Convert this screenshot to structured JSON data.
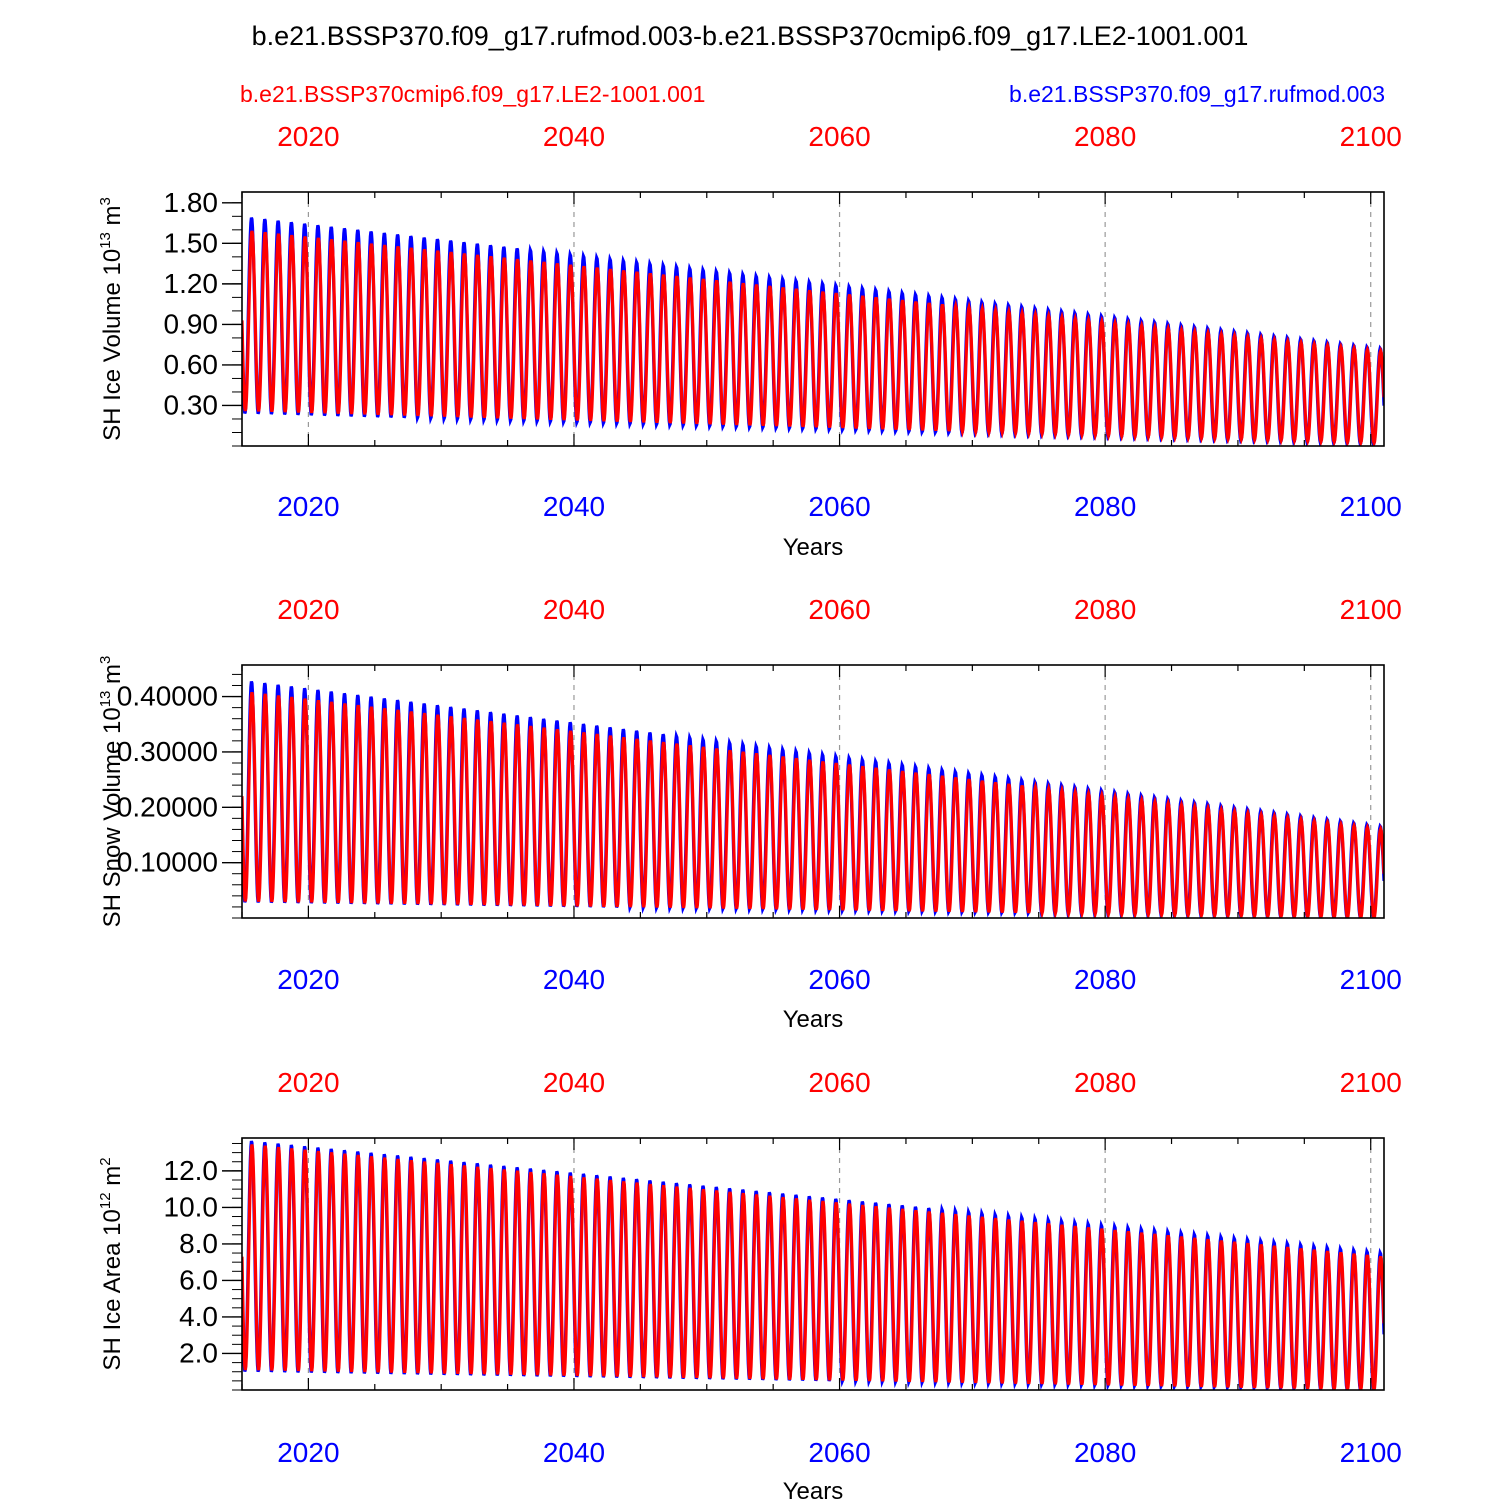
{
  "title": "b.e21.BSSP370.f09_g17.rufmod.003-b.e21.BSSP370cmip6.f09_g17.LE2-1001.001",
  "legend": {
    "left_label": "b.e21.BSSP370cmip6.f09_g17.LE2-1001.001",
    "right_label": "b.e21.BSSP370.f09_g17.rufmod.003"
  },
  "colors": {
    "series_a": "#ff0000",
    "series_b": "#0000ff",
    "grid": "#999999",
    "axis": "#000000"
  },
  "xaxis_label": "Years",
  "year_ticks": [
    "2020",
    "2040",
    "2060",
    "2080",
    "2100"
  ],
  "chart_data": [
    {
      "type": "line",
      "title": "",
      "xlabel": "Years",
      "ylabel": {
        "main": "SH Ice Volume 10",
        "exp": "13",
        "unit": " m",
        "unit_exp": "3"
      },
      "xlim": [
        2015,
        2101
      ],
      "ylim": [
        0.0,
        1.88
      ],
      "yticks": [
        0.3,
        0.6,
        0.9,
        1.2,
        1.5,
        1.8
      ],
      "ytick_labels": [
        "0.30",
        "0.60",
        "0.90",
        "1.20",
        "1.50",
        "1.80"
      ],
      "minor_step": 0.1,
      "series": [
        {
          "name": "b.e21.BSSP370cmip6.f09_g17.LE2-1001.001",
          "color": "#ff0000",
          "max_start": 1.6,
          "max_end": 0.7,
          "min_start": 0.26,
          "min_end": 0.02,
          "phase": 0.0
        },
        {
          "name": "b.e21.BSSP370.f09_g17.rufmod.003",
          "color": "#0000ff",
          "max_start": 1.7,
          "max_end": 0.72,
          "min_start": 0.24,
          "min_end": 0.01,
          "phase": 0.03
        }
      ]
    },
    {
      "type": "line",
      "title": "",
      "xlabel": "Years",
      "ylabel": {
        "main": "SH Snow Volume 10",
        "exp": "13",
        "unit": " m",
        "unit_exp": "3"
      },
      "xlim": [
        2015,
        2101
      ],
      "ylim": [
        0.0,
        0.457
      ],
      "yticks": [
        0.1,
        0.2,
        0.3,
        0.4
      ],
      "ytick_labels": [
        "0.10000",
        "0.20000",
        "0.30000",
        "0.40000"
      ],
      "minor_step": 0.02,
      "series": [
        {
          "name": "b.e21.BSSP370cmip6.f09_g17.LE2-1001.001",
          "color": "#ff0000",
          "max_start": 0.41,
          "max_end": 0.16,
          "min_start": 0.03,
          "min_end": 0.0,
          "phase": 0.0
        },
        {
          "name": "b.e21.BSSP370.f09_g17.rufmod.003",
          "color": "#0000ff",
          "max_start": 0.43,
          "max_end": 0.165,
          "min_start": 0.028,
          "min_end": 0.0,
          "phase": 0.03
        }
      ]
    },
    {
      "type": "line",
      "title": "",
      "xlabel": "Years",
      "ylabel": {
        "main": "SH Ice Area 10",
        "exp": "12",
        "unit": " m",
        "unit_exp": "2"
      },
      "xlim": [
        2015,
        2101
      ],
      "ylim": [
        0.0,
        13.8
      ],
      "yticks": [
        2.0,
        4.0,
        6.0,
        8.0,
        10.0,
        12.0
      ],
      "ytick_labels": [
        "2.0",
        "4.0",
        "6.0",
        "8.0",
        "10.0",
        "12.0"
      ],
      "minor_step": 0.5,
      "series": [
        {
          "name": "b.e21.BSSP370cmip6.f09_g17.LE2-1001.001",
          "color": "#ff0000",
          "max_start": 13.5,
          "max_end": 7.3,
          "min_start": 1.1,
          "min_end": 0.0,
          "phase": 0.0
        },
        {
          "name": "b.e21.BSSP370.f09_g17.rufmod.003",
          "color": "#0000ff",
          "max_start": 13.7,
          "max_end": 7.5,
          "min_start": 1.0,
          "min_end": 0.0,
          "phase": 0.03
        }
      ]
    }
  ]
}
